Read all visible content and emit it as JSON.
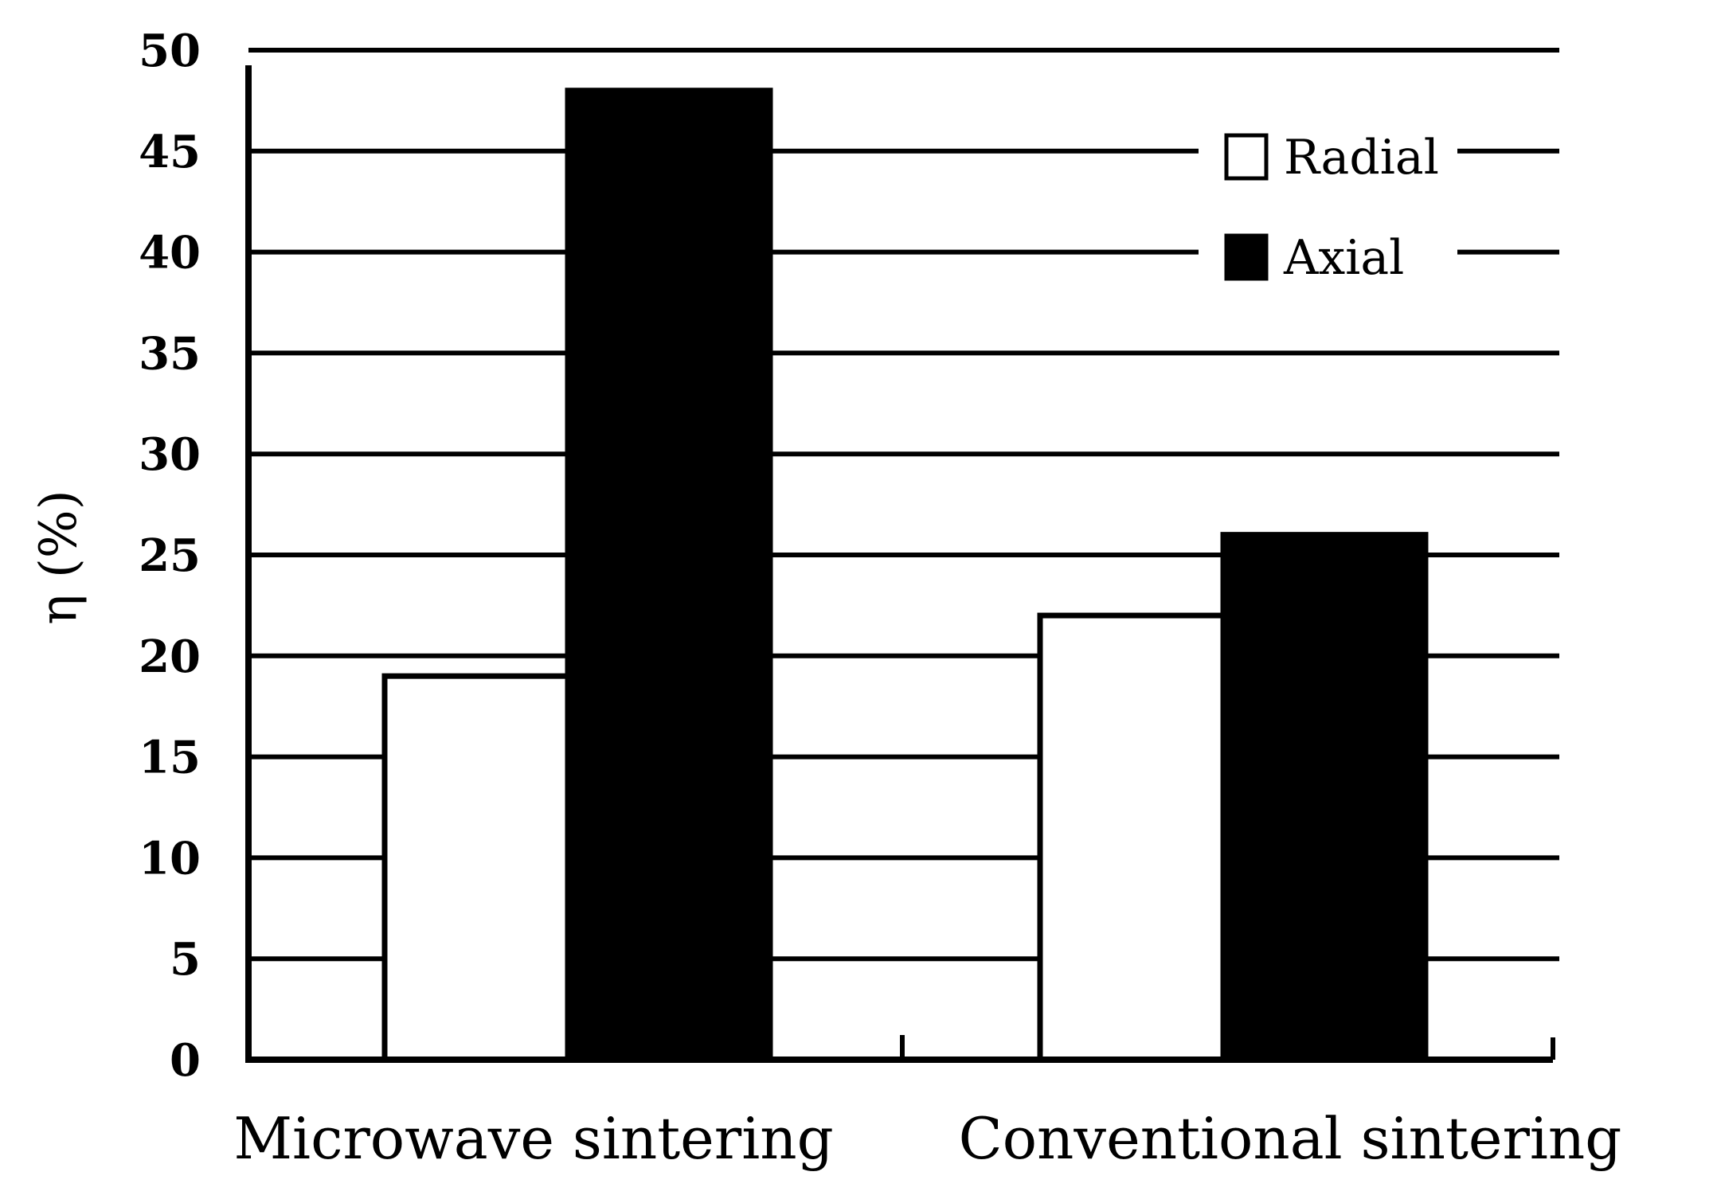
{
  "chart_data": {
    "type": "bar",
    "title": "",
    "xlabel": "",
    "ylabel": "η (%)",
    "categories": [
      "Microwave sintering",
      "Conventional sintering"
    ],
    "series": [
      {
        "name": "Radial",
        "values": [
          19,
          22
        ],
        "color": "#ffffff"
      },
      {
        "name": "Axial",
        "values": [
          48,
          26
        ],
        "color": "#000000"
      }
    ],
    "ylim": [
      0,
      50
    ],
    "yticks": [
      0,
      5,
      10,
      15,
      20,
      25,
      30,
      35,
      40,
      45,
      50
    ],
    "grid": true,
    "legend": "top-right"
  }
}
